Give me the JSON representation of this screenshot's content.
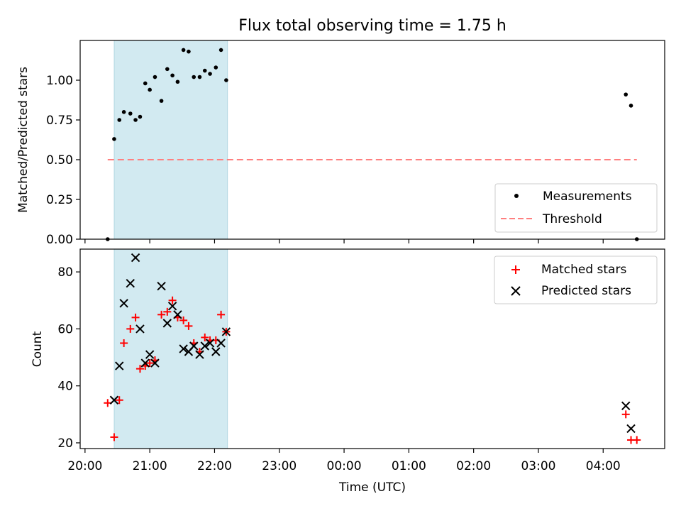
{
  "figure": {
    "title": "Flux total observing time = 1.75 h",
    "xlabel": "Time (UTC)",
    "x_ticks": [
      "20:00",
      "21:00",
      "22:00",
      "23:00",
      "00:00",
      "01:00",
      "02:00",
      "03:00",
      "04:00"
    ],
    "colors": {
      "shade": "#add8e6",
      "threshold": "#ff7f7f",
      "matched": "#ff0000",
      "predicted": "#000000",
      "measurement": "#000000"
    }
  },
  "chart_data": [
    {
      "type": "scatter",
      "ylabel": "Matched/Predicted stars",
      "yticks": [
        "0.00",
        "0.25",
        "0.50",
        "0.75",
        "1.00"
      ],
      "ylim": [
        0,
        1.25
      ],
      "x_axis": "time_hours_since_20:00",
      "shaded_interval": [
        20.45,
        22.2
      ],
      "series": [
        {
          "name": "Measurements",
          "marker": "dot",
          "points": [
            [
              20.35,
              0.0
            ],
            [
              20.45,
              0.63
            ],
            [
              20.53,
              0.75
            ],
            [
              20.6,
              0.8
            ],
            [
              20.7,
              0.79
            ],
            [
              20.78,
              0.75
            ],
            [
              20.85,
              0.77
            ],
            [
              20.93,
              0.98
            ],
            [
              21.0,
              0.94
            ],
            [
              21.08,
              1.02
            ],
            [
              21.18,
              0.87
            ],
            [
              21.27,
              1.07
            ],
            [
              21.35,
              1.03
            ],
            [
              21.43,
              0.99
            ],
            [
              21.52,
              1.19
            ],
            [
              21.6,
              1.18
            ],
            [
              21.68,
              1.02
            ],
            [
              21.77,
              1.02
            ],
            [
              21.85,
              1.06
            ],
            [
              21.93,
              1.04
            ],
            [
              22.02,
              1.08
            ],
            [
              22.1,
              1.19
            ],
            [
              22.18,
              1.0
            ],
            [
              28.35,
              0.91
            ],
            [
              28.43,
              0.84
            ],
            [
              28.52,
              0.0
            ]
          ]
        },
        {
          "name": "Threshold",
          "style": "dashed-line",
          "points": [
            [
              20.35,
              0.5
            ],
            [
              28.52,
              0.5
            ]
          ]
        }
      ],
      "legend": "lower-right"
    },
    {
      "type": "scatter",
      "ylabel": "Count",
      "yticks": [
        "20",
        "40",
        "60",
        "80"
      ],
      "ylim": [
        18,
        88
      ],
      "x_axis": "time_hours_since_20:00",
      "shaded_interval": [
        20.45,
        22.2
      ],
      "series": [
        {
          "name": "Matched stars",
          "marker": "plus",
          "points": [
            [
              20.35,
              34
            ],
            [
              20.45,
              22
            ],
            [
              20.53,
              35
            ],
            [
              20.6,
              55
            ],
            [
              20.7,
              60
            ],
            [
              20.78,
              64
            ],
            [
              20.85,
              46
            ],
            [
              20.93,
              47
            ],
            [
              21.0,
              48
            ],
            [
              21.08,
              49
            ],
            [
              21.18,
              65
            ],
            [
              21.27,
              66
            ],
            [
              21.35,
              70
            ],
            [
              21.43,
              64
            ],
            [
              21.52,
              63
            ],
            [
              21.6,
              61
            ],
            [
              21.68,
              55
            ],
            [
              21.77,
              52
            ],
            [
              21.85,
              57
            ],
            [
              21.93,
              56
            ],
            [
              22.02,
              56
            ],
            [
              22.1,
              65
            ],
            [
              22.18,
              59
            ],
            [
              28.35,
              30
            ],
            [
              28.43,
              21
            ],
            [
              28.52,
              21
            ]
          ]
        },
        {
          "name": "Predicted stars",
          "marker": "x",
          "points": [
            [
              20.45,
              35
            ],
            [
              20.53,
              47
            ],
            [
              20.6,
              69
            ],
            [
              20.7,
              76
            ],
            [
              20.78,
              85
            ],
            [
              20.85,
              60
            ],
            [
              20.93,
              48
            ],
            [
              21.0,
              51
            ],
            [
              21.08,
              48
            ],
            [
              21.18,
              75
            ],
            [
              21.27,
              62
            ],
            [
              21.35,
              68
            ],
            [
              21.43,
              65
            ],
            [
              21.52,
              53
            ],
            [
              21.6,
              52
            ],
            [
              21.68,
              54
            ],
            [
              21.77,
              51
            ],
            [
              21.85,
              54
            ],
            [
              21.93,
              55
            ],
            [
              22.02,
              52
            ],
            [
              22.1,
              55
            ],
            [
              22.18,
              59
            ],
            [
              28.35,
              33
            ],
            [
              28.43,
              25
            ]
          ]
        }
      ],
      "legend": "upper-right"
    }
  ]
}
